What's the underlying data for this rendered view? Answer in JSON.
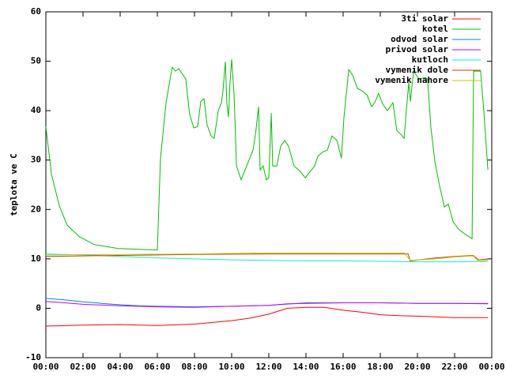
{
  "chart_data": {
    "type": "line",
    "ylabel": "teplota ve C",
    "ylim": [
      -10,
      60
    ],
    "yticks": [
      -10,
      0,
      10,
      20,
      30,
      40,
      50,
      60
    ],
    "xlim": [
      0,
      24
    ],
    "xticks": [
      {
        "value": 0,
        "label": "00:00"
      },
      {
        "value": 2,
        "label": "02:00"
      },
      {
        "value": 4,
        "label": "04:00"
      },
      {
        "value": 6,
        "label": "06:00"
      },
      {
        "value": 8,
        "label": "08:00"
      },
      {
        "value": 10,
        "label": "10:00"
      },
      {
        "value": 12,
        "label": "12:00"
      },
      {
        "value": 14,
        "label": "14:00"
      },
      {
        "value": 16,
        "label": "16:00"
      },
      {
        "value": 18,
        "label": "18:00"
      },
      {
        "value": 20,
        "label": "20:00"
      },
      {
        "value": 22,
        "label": "22:00"
      },
      {
        "value": 24,
        "label": "00:00"
      }
    ],
    "legend": "top-right",
    "series": [
      {
        "name": "3ti solar",
        "color": "#ff0000",
        "x": [
          0,
          2,
          4,
          6,
          8,
          10,
          11,
          12,
          13,
          14,
          15,
          16,
          17,
          18,
          19,
          20,
          22,
          23.8
        ],
        "values": [
          -3.6,
          -3.4,
          -3.3,
          -3.5,
          -3.2,
          -2.5,
          -2,
          -1.2,
          0,
          0.2,
          0.2,
          -0.4,
          -0.8,
          -1.3,
          -1.5,
          -1.6,
          -1.9,
          -1.9
        ]
      },
      {
        "name": "kotel",
        "color": "#00c000",
        "x": [
          0,
          0.3,
          0.72,
          1.15,
          1.8,
          2.6,
          3.9,
          6,
          6.17,
          6.47,
          6.8,
          6.98,
          7.15,
          7.53,
          7.74,
          7.96,
          8.17,
          8.34,
          8.51,
          8.68,
          8.89,
          9.06,
          9.28,
          9.45,
          9.53,
          9.66,
          9.74,
          9.83,
          9.91,
          10,
          10.13,
          10.26,
          10.51,
          10.81,
          11.15,
          11.28,
          11.45,
          11.53,
          11.7,
          11.87,
          12,
          12.13,
          12.21,
          12.43,
          12.64,
          12.85,
          13.06,
          13.36,
          13.7,
          13.96,
          14.21,
          14.47,
          14.64,
          14.89,
          15.15,
          15.4,
          15.66,
          15.91,
          16.04,
          16.3,
          16.51,
          16.77,
          17.02,
          17.28,
          17.53,
          17.7,
          17.91,
          18.13,
          18.38,
          18.68,
          18.89,
          19.11,
          19.28,
          19.4,
          19.53,
          19.62,
          19.79,
          20.09,
          20.43,
          20.55,
          20.72,
          20.94,
          21.19,
          21.45,
          21.66,
          21.91,
          22.21,
          22.64,
          22.94,
          23.02,
          23.4,
          23.57,
          23.79
        ],
        "values": [
          36.8,
          27.2,
          20.8,
          16.8,
          14.5,
          12.9,
          12.1,
          11.8,
          30.4,
          41.6,
          48.8,
          48,
          48.5,
          46.4,
          39.2,
          36.5,
          36.8,
          41.9,
          42.4,
          37.1,
          34.9,
          34.4,
          40,
          41.6,
          44,
          49.9,
          41.6,
          38.7,
          45.6,
          50.4,
          43.2,
          28.8,
          26,
          28.8,
          32,
          35.2,
          40.8,
          28,
          28.8,
          26,
          26.4,
          39.5,
          28.8,
          28.8,
          32.8,
          34,
          32.8,
          28.8,
          27.7,
          26.4,
          27.6,
          28.8,
          30.8,
          31.6,
          32,
          34.9,
          34,
          30.4,
          38.4,
          48.3,
          47.2,
          44.5,
          44,
          43.2,
          40.8,
          41.6,
          43.5,
          41.3,
          40,
          41.6,
          36,
          35.2,
          34.4,
          40,
          45.6,
          41.9,
          48,
          46.4,
          46.7,
          46.4,
          36.8,
          29.6,
          24.8,
          20.5,
          21.1,
          17.6,
          16,
          14.8,
          14.1,
          48,
          48,
          40,
          28
        ]
      },
      {
        "name": "odvod solar",
        "color": "#0080ff",
        "x": [
          0,
          1,
          2,
          3,
          4,
          5,
          6,
          8,
          10,
          12,
          14,
          16,
          18,
          20,
          22,
          23.8
        ],
        "values": [
          2,
          1.7,
          1.3,
          1,
          0.7,
          0.5,
          0.4,
          0.3,
          0.4,
          0.6,
          1.1,
          1.1,
          1.1,
          1,
          1,
          0.9
        ]
      },
      {
        "name": "privod solar",
        "color": "#c000ff",
        "x": [
          0,
          1,
          2,
          4,
          6,
          8,
          10,
          12,
          13,
          14,
          16,
          18,
          20,
          22,
          23.8
        ],
        "values": [
          1.4,
          1.1,
          0.8,
          0.5,
          0.3,
          0.2,
          0.4,
          0.6,
          0.9,
          1,
          1.1,
          1.1,
          1,
          1,
          1
        ]
      },
      {
        "name": "kutloch",
        "color": "#00eeee",
        "x": [
          0,
          2,
          4,
          6,
          8,
          10,
          12,
          14,
          16,
          18,
          20,
          22,
          23.8
        ],
        "values": [
          11,
          10.8,
          10.5,
          10.2,
          10,
          9.8,
          9.7,
          9.6,
          9.6,
          9.5,
          9.4,
          9.4,
          9.5
        ]
      },
      {
        "name": "vymenik dole",
        "color": "#c04000",
        "x": [
          0,
          4,
          8,
          12,
          16,
          19.5,
          19.6,
          21,
          22,
          23,
          23.3,
          23.8
        ],
        "values": [
          10.5,
          10.7,
          10.9,
          11,
          11,
          11,
          9.6,
          10.2,
          10.5,
          10.7,
          9.8,
          10
        ]
      },
      {
        "name": "vymenik nahore",
        "color": "#c8c800",
        "x": [
          0,
          4,
          8,
          12,
          16,
          19.3,
          19.6,
          21,
          22,
          23,
          23.3,
          23.8
        ],
        "values": [
          10.8,
          10.9,
          11,
          11.2,
          11.2,
          11.2,
          9.7,
          10,
          10.4,
          10.6,
          9.5,
          9.8
        ]
      }
    ]
  }
}
